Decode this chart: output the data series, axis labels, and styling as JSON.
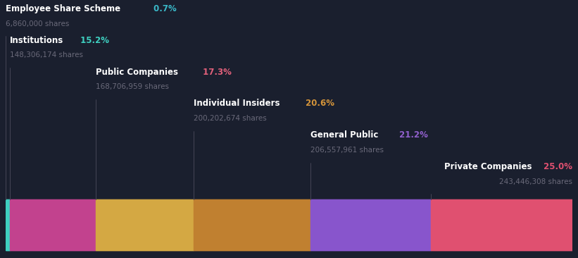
{
  "background_color": "#1a1f2e",
  "segments": [
    {
      "label": "Employee Share Scheme",
      "pct": "0.7%",
      "shares": "6,860,000 shares",
      "value": 0.7,
      "bar_color": "#3ecfc0",
      "pct_color": "#3ab8c8",
      "text_anchor": "left",
      "text_level": 5
    },
    {
      "label": "Institutions",
      "pct": "15.2%",
      "shares": "148,306,174 shares",
      "value": 15.2,
      "bar_color": "#c2428e",
      "pct_color": "#3ecfc0",
      "text_anchor": "left",
      "text_level": 4
    },
    {
      "label": "Public Companies",
      "pct": "17.3%",
      "shares": "168,706,959 shares",
      "value": 17.3,
      "bar_color": "#d4a843",
      "pct_color": "#e0607a",
      "text_anchor": "left",
      "text_level": 3
    },
    {
      "label": "Individual Insiders",
      "pct": "20.6%",
      "shares": "200,202,674 shares",
      "value": 20.6,
      "bar_color": "#c08030",
      "pct_color": "#d4943a",
      "text_anchor": "left",
      "text_level": 2
    },
    {
      "label": "General Public",
      "pct": "21.2%",
      "shares": "206,557,961 shares",
      "value": 21.2,
      "bar_color": "#8855cc",
      "pct_color": "#9060cc",
      "text_anchor": "left",
      "text_level": 1
    },
    {
      "label": "Private Companies",
      "pct": "25.0%",
      "shares": "243,446,308 shares",
      "value": 25.0,
      "bar_color": "#e05070",
      "pct_color": "#e05070",
      "text_anchor": "right",
      "text_level": 0
    }
  ],
  "label_color": "#ffffff",
  "shares_color": "#6a6a7a",
  "line_color": "#444455",
  "label_fontsize": 8.5,
  "shares_fontsize": 7.5
}
